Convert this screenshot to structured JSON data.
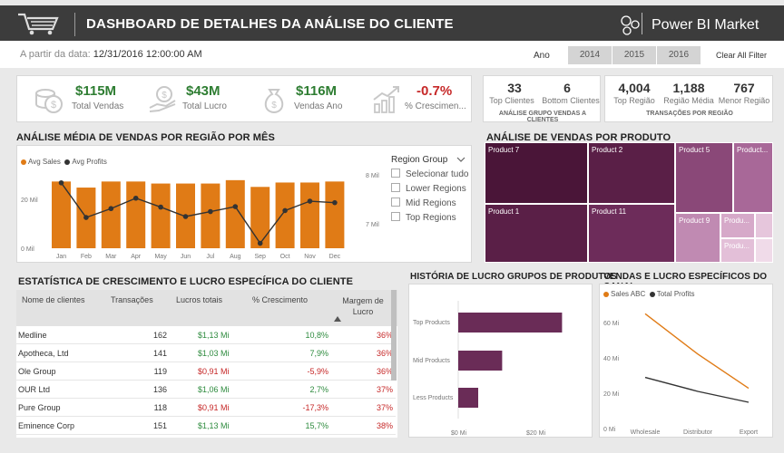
{
  "header": {
    "title": "DASHBOARD DE DETALHES DA ANÁLISE DO CLIENTE",
    "brand": "Power BI Market"
  },
  "filters": {
    "date_label": "A partir da data:",
    "date_value": "12/31/2016 12:00:00 AM",
    "year_label": "Ano",
    "years": [
      "2014",
      "2015",
      "2016"
    ],
    "clear_label": "Clear All Filter"
  },
  "kpis": [
    {
      "value": "$115M",
      "label": "Total Vendas",
      "icon": "coin-icon"
    },
    {
      "value": "$43M",
      "label": "Total Lucro",
      "icon": "hand-money-icon"
    },
    {
      "value": "$116M",
      "label": "Vendas Ano",
      "icon": "money-bag-icon"
    },
    {
      "value": "-0.7%",
      "label": "% Crescimen...",
      "icon": "growth-chart-icon"
    }
  ],
  "client_groups": {
    "top_value": "33",
    "top_label": "Top Clientes",
    "bottom_value": "6",
    "bottom_label": "Bottom Clientes",
    "caption": "ANÁLISE  GRUPO VENDAS A CLIENTES"
  },
  "region_tx": {
    "top_value": "4,004",
    "top_label": "Top Região",
    "avg_value": "1,188",
    "avg_label": "Região Média",
    "min_value": "767",
    "min_label": "Menor Região",
    "caption": "TRANSAÇÕES POR REGIÃO"
  },
  "monthly": {
    "title": "ANÁLISE MÉDIA DE VENDAS POR REGIÃO POR MÊS",
    "legend": [
      "Avg Sales",
      "Avg Profits"
    ],
    "yleft_ticks": [
      "20 Mil",
      "0 Mil"
    ],
    "yright_ticks": [
      "8 Mil",
      "7 Mil"
    ]
  },
  "region_slicer": {
    "title": "Region Group",
    "items": [
      "Selecionar tudo",
      "Lower Regions",
      "Mid Regions",
      "Top Regions"
    ]
  },
  "treemap": {
    "title": "ANÁLISE DE VENDAS POR PRODUTO",
    "labels": [
      "Product 7",
      "Product 2",
      "Product 5",
      "Product...",
      "Product 1",
      "Product 11",
      "Product 9",
      "Produ...",
      "Produ..."
    ]
  },
  "table": {
    "title": "ESTATÍSTICA DE CRESCIMENTO E LUCRO ESPECÍFICA DO CLIENTE",
    "headers": [
      "Nome de clientes",
      "Transações",
      "Lucros totais",
      "% Crescimento",
      "Margem de Lucro"
    ],
    "rows": [
      {
        "name": "Medline",
        "tx": "162",
        "profit": "$1,13 Mi",
        "growth": "10,8%",
        "margin": "36%"
      },
      {
        "name": "Apotheca, Ltd",
        "tx": "141",
        "profit": "$1,03 Mi",
        "growth": "7,9%",
        "margin": "36%"
      },
      {
        "name": "Ole Group",
        "tx": "119",
        "profit": "$0,91 Mi",
        "growth": "-5,9%",
        "margin": "36%"
      },
      {
        "name": "OUR Ltd",
        "tx": "136",
        "profit": "$1,06 Mi",
        "growth": "2,7%",
        "margin": "37%"
      },
      {
        "name": "Pure Group",
        "tx": "118",
        "profit": "$0,91 Mi",
        "growth": "-17,3%",
        "margin": "37%"
      },
      {
        "name": "Eminence Corp",
        "tx": "151",
        "profit": "$1,13 Mi",
        "growth": "15,7%",
        "margin": "38%"
      }
    ]
  },
  "product_history": {
    "title": "HISTÓRIA DE LUCRO GRUPOS DE PRODUTOS",
    "xticks": [
      "$0 Mi",
      "$20 Mi"
    ]
  },
  "channel": {
    "title": "VENDAS E LUCRO ESPECÍFICOS DO CANAL",
    "legend": [
      "Sales ABC",
      "Total Profits"
    ],
    "yticks": [
      "60 Mi",
      "40 Mi",
      "20 Mi",
      "0 Mi"
    ]
  },
  "chart_data": [
    {
      "type": "bar",
      "categories": [
        "Jan",
        "Feb",
        "Mar",
        "Apr",
        "May",
        "Jun",
        "Jul",
        "Aug",
        "Sep",
        "Oct",
        "Nov",
        "Dec"
      ],
      "series": [
        {
          "name": "Avg Sales",
          "values": [
            19.8,
            18.0,
            19.8,
            19.8,
            19.2,
            19.2,
            19.2,
            20.2,
            18.2,
            19.5,
            19.5,
            19.8
          ]
        },
        {
          "name": "Avg Profits",
          "values": [
            7.82,
            7.12,
            7.3,
            7.51,
            7.33,
            7.14,
            7.24,
            7.34,
            6.6,
            7.26,
            7.45,
            7.42
          ]
        }
      ],
      "ylim": [
        0,
        25
      ],
      "y2lim": [
        6.5,
        8.2
      ],
      "colors": [
        "#e07b16",
        "#333333"
      ]
    },
    {
      "type": "treemap",
      "title": "ANÁLISE DE VENDAS POR PRODUTO"
    },
    {
      "type": "bar",
      "orientation": "horizontal",
      "categories": [
        "Top Products",
        "Mid Products",
        "Less Products"
      ],
      "values": [
        26,
        11,
        5
      ],
      "xlim": [
        0,
        30
      ],
      "color": "#6a2c57"
    },
    {
      "type": "line",
      "categories": [
        "Wholesale",
        "Distributor",
        "Export"
      ],
      "series": [
        {
          "name": "Sales ABC",
          "values": [
            64,
            38,
            16
          ]
        },
        {
          "name": "Total Profits",
          "values": [
            23,
            14,
            7
          ]
        }
      ],
      "ylim": [
        0,
        70
      ],
      "colors": [
        "#e07b16",
        "#333333"
      ]
    }
  ]
}
